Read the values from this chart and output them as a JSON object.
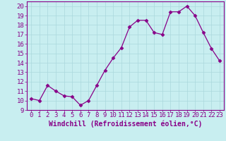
{
  "x": [
    0,
    1,
    2,
    3,
    4,
    5,
    6,
    7,
    8,
    9,
    10,
    11,
    12,
    13,
    14,
    15,
    16,
    17,
    18,
    19,
    20,
    21,
    22,
    23
  ],
  "y": [
    10.2,
    10.0,
    11.6,
    11.0,
    10.5,
    10.4,
    9.5,
    10.0,
    11.6,
    13.2,
    14.5,
    15.6,
    17.8,
    18.5,
    18.5,
    17.2,
    17.0,
    19.4,
    19.4,
    20.0,
    19.0,
    17.2,
    15.5,
    14.2
  ],
  "line_color": "#880088",
  "marker": "D",
  "marker_size": 2.5,
  "bg_color": "#c8eef0",
  "grid_color": "#aad8dc",
  "xlabel": "Windchill (Refroidissement éolien,°C)",
  "ylim": [
    9,
    20.5
  ],
  "xlim": [
    -0.5,
    23.5
  ],
  "yticks": [
    9,
    10,
    11,
    12,
    13,
    14,
    15,
    16,
    17,
    18,
    19,
    20
  ],
  "xticks": [
    0,
    1,
    2,
    3,
    4,
    5,
    6,
    7,
    8,
    9,
    10,
    11,
    12,
    13,
    14,
    15,
    16,
    17,
    18,
    19,
    20,
    21,
    22,
    23
  ],
  "axis_color": "#880088",
  "tick_color": "#880088",
  "label_color": "#880088",
  "font_size": 6.5,
  "xlabel_font_size": 7.0,
  "border_color": "#880088",
  "spine_bottom_color": "#880088"
}
